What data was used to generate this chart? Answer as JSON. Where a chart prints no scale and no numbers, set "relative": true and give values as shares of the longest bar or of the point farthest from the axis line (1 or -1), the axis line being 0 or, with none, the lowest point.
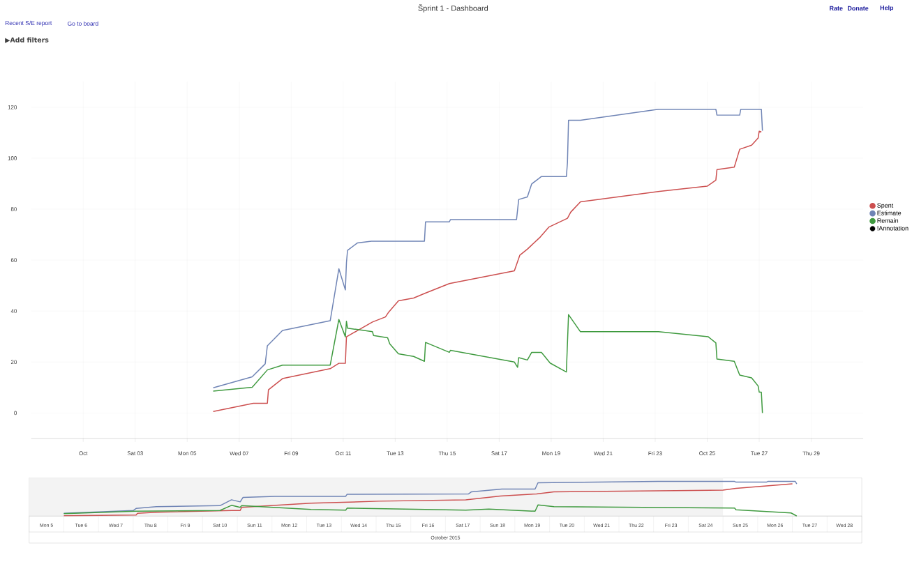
{
  "chart_data": [
    {
      "type": "line",
      "title": "Šprint 1 - Dashboard",
      "annotations": [
        "Recent S/E report",
        "Go to board",
        "▶Add filters",
        "Rate",
        "Donate",
        "Help"
      ],
      "xlim": [
        "2015-09-29",
        "2015-10-31"
      ],
      "ylim": [
        -10,
        130
      ],
      "xticks": [
        {
          "value": "2015-10-01",
          "label": "Oct"
        },
        {
          "value": "2015-10-03",
          "label": "Sat 03"
        },
        {
          "value": "2015-10-05",
          "label": "Mon 05"
        },
        {
          "value": "2015-10-07",
          "label": "Wed 07"
        },
        {
          "value": "2015-10-09",
          "label": "Fri 09"
        },
        {
          "value": "2015-10-11",
          "label": "Oct 11"
        },
        {
          "value": "2015-10-13",
          "label": "Tue 13"
        },
        {
          "value": "2015-10-15",
          "label": "Thu 15"
        },
        {
          "value": "2015-10-17",
          "label": "Sat 17"
        },
        {
          "value": "2015-10-19",
          "label": "Mon 19"
        },
        {
          "value": "2015-10-21",
          "label": "Wed 21"
        },
        {
          "value": "2015-10-23",
          "label": "Fri 23"
        },
        {
          "value": "2015-10-25",
          "label": "Oct 25"
        },
        {
          "value": "2015-10-27",
          "label": "Tue 27"
        },
        {
          "value": "2015-10-29",
          "label": "Thu 29"
        }
      ],
      "yticks": [
        0,
        20,
        40,
        60,
        80,
        100,
        120
      ],
      "grid": true,
      "legend": "right",
      "series": [
        {
          "name": "Spent",
          "color": "#cc4f4f",
          "x": [
            "2015-10-06T00:00",
            "2015-10-07T13:00",
            "2015-10-08T02:00",
            "2015-10-08T03:00",
            "2015-10-08T16:00",
            "2015-10-10T12:00",
            "2015-10-10T20:00",
            "2015-10-11T02:00",
            "2015-10-11T03:00",
            "2015-10-12T03:00",
            "2015-10-12T15:00",
            "2015-10-12T18:00",
            "2015-10-13T03:00",
            "2015-10-13T17:00",
            "2015-10-14T03:00",
            "2015-10-15T02:00",
            "2015-10-17T14:00",
            "2015-10-17T19:00",
            "2015-10-18T02:00",
            "2015-10-18T14:00",
            "2015-10-18T22:00",
            "2015-10-19T15:00",
            "2015-10-19T18:00",
            "2015-10-20T03:00",
            "2015-10-23T04:00",
            "2015-10-25T00:00",
            "2015-10-25T08:00",
            "2015-10-25T09:00",
            "2015-10-26T01:00",
            "2015-10-26T06:00",
            "2015-10-26T17:00",
            "2015-10-26T23:00",
            "2015-10-27T00:00",
            "2015-10-27T02:00"
          ],
          "values": [
            0.6,
            3.8,
            3.8,
            9.1,
            13.5,
            17.4,
            19.5,
            19.5,
            29.9,
            35.7,
            37.7,
            39.6,
            44.0,
            45.1,
            46.9,
            50.8,
            55.8,
            61.9,
            64.3,
            69.1,
            73.0,
            76.4,
            78.8,
            82.9,
            87.0,
            89.0,
            91.4,
            95.5,
            96.5,
            103.5,
            105.1,
            107.9,
            110.6,
            110.3
          ]
        },
        {
          "name": "Estimate",
          "color": "#6f84b5",
          "x": [
            "2015-10-06T00:00",
            "2015-10-07T12:00",
            "2015-10-08T00:00",
            "2015-10-08T02:00",
            "2015-10-08T16:00",
            "2015-10-10T12:00",
            "2015-10-10T20:00",
            "2015-10-11T02:00",
            "2015-10-11T03:00",
            "2015-10-11T04:00",
            "2015-10-11T13:00",
            "2015-10-12T02:00",
            "2015-10-14T03:00",
            "2015-10-14T04:00",
            "2015-10-15T02:00",
            "2015-10-15T03:00",
            "2015-10-17T16:00",
            "2015-10-17T18:00",
            "2015-10-18T02:00",
            "2015-10-18T06:00",
            "2015-10-18T15:00",
            "2015-10-19T14:00",
            "2015-10-19T15:00",
            "2015-10-19T16:00",
            "2015-10-20T03:00",
            "2015-10-23T03:00",
            "2015-10-25T08:00",
            "2015-10-25T09:00",
            "2015-10-26T06:00",
            "2015-10-26T07:00",
            "2015-10-27T02:00",
            "2015-10-27T03:00"
          ],
          "values": [
            9.9,
            14.2,
            19.3,
            26.4,
            32.4,
            36.2,
            56.6,
            48.3,
            59.0,
            63.8,
            66.7,
            67.4,
            67.4,
            75.0,
            75.0,
            75.9,
            75.9,
            83.8,
            84.8,
            89.9,
            92.8,
            92.8,
            98.2,
            114.9,
            114.9,
            119.2,
            119.2,
            116.9,
            116.9,
            119.2,
            119.2,
            110.8
          ]
        },
        {
          "name": "Remain",
          "color": "#3f9a3f",
          "x": [
            "2015-10-06T00:00",
            "2015-10-07T12:00",
            "2015-10-08T02:00",
            "2015-10-08T16:00",
            "2015-10-10T12:00",
            "2015-10-10T20:00",
            "2015-10-11T02:00",
            "2015-10-11T03:00",
            "2015-10-11T04:00",
            "2015-10-12T03:00",
            "2015-10-12T04:00",
            "2015-10-12T17:00",
            "2015-10-12T19:00",
            "2015-10-13T03:00",
            "2015-10-13T17:00",
            "2015-10-14T03:00",
            "2015-10-14T04:00",
            "2015-10-15T02:00",
            "2015-10-15T03:00",
            "2015-10-17T14:00",
            "2015-10-17T17:00",
            "2015-10-17T18:00",
            "2015-10-18T02:00",
            "2015-10-18T06:00",
            "2015-10-18T15:00",
            "2015-10-18T23:00",
            "2015-10-19T14:00",
            "2015-10-19T16:00",
            "2015-10-20T03:00",
            "2015-10-23T03:00",
            "2015-10-25T01:00",
            "2015-10-25T08:00",
            "2015-10-25T09:00",
            "2015-10-26T01:00",
            "2015-10-26T06:00",
            "2015-10-26T17:00",
            "2015-10-26T23:00",
            "2015-10-27T00:00",
            "2015-10-27T02:00",
            "2015-10-27T03:00"
          ],
          "values": [
            8.6,
            10.1,
            16.9,
            18.8,
            18.8,
            36.7,
            29.9,
            36.0,
            33.3,
            31.9,
            30.4,
            29.5,
            27.1,
            23.2,
            22.2,
            20.3,
            27.7,
            23.8,
            24.6,
            20.0,
            17.9,
            21.7,
            20.8,
            23.8,
            23.8,
            19.6,
            16.1,
            38.6,
            31.9,
            31.9,
            29.9,
            27.5,
            21.2,
            20.3,
            14.9,
            13.8,
            10.6,
            8.2,
            8.2,
            0
          ]
        },
        {
          "name": "!Annotation",
          "color": "#000000"
        }
      ]
    },
    {
      "type": "line",
      "relative": true,
      "tick_labels": "x",
      "xlabel": "October 2015",
      "xlim": [
        "2015-10-05",
        "2015-10-29"
      ],
      "xticks": [
        {
          "value": "2015-10-05T12:00",
          "label": "Mon 5"
        },
        {
          "value": "2015-10-06T12:00",
          "label": "Tue 6"
        },
        {
          "value": "2015-10-07T12:00",
          "label": "Wed 7"
        },
        {
          "value": "2015-10-08T12:00",
          "label": "Thu 8"
        },
        {
          "value": "2015-10-09T12:00",
          "label": "Fri 9"
        },
        {
          "value": "2015-10-10T12:00",
          "label": "Sat 10"
        },
        {
          "value": "2015-10-11T12:00",
          "label": "Sun 11"
        },
        {
          "value": "2015-10-12T12:00",
          "label": "Mon 12"
        },
        {
          "value": "2015-10-13T12:00",
          "label": "Tue 13"
        },
        {
          "value": "2015-10-14T12:00",
          "label": "Wed 14"
        },
        {
          "value": "2015-10-15T12:00",
          "label": "Thu 15"
        },
        {
          "value": "2015-10-16T12:00",
          "label": "Fri 16"
        },
        {
          "value": "2015-10-17T12:00",
          "label": "Sat 17"
        },
        {
          "value": "2015-10-18T12:00",
          "label": "Sun 18"
        },
        {
          "value": "2015-10-19T12:00",
          "label": "Mon 19"
        },
        {
          "value": "2015-10-20T12:00",
          "label": "Tue 20"
        },
        {
          "value": "2015-10-21T12:00",
          "label": "Wed 21"
        },
        {
          "value": "2015-10-22T12:00",
          "label": "Thu 22"
        },
        {
          "value": "2015-10-23T12:00",
          "label": "Fri 23"
        },
        {
          "value": "2015-10-24T12:00",
          "label": "Sat 24"
        },
        {
          "value": "2015-10-25T12:00",
          "label": "Sun 25"
        },
        {
          "value": "2015-10-26T12:00",
          "label": "Mon 26"
        },
        {
          "value": "2015-10-27T12:00",
          "label": "Tue 27"
        },
        {
          "value": "2015-10-28T12:00",
          "label": "Wed 28"
        }
      ],
      "bands": [
        {
          "axis": "x",
          "from": "2015-10-05",
          "to": "2015-10-25",
          "color": "#f3f3f3"
        }
      ],
      "series": [
        {
          "color": "#cc4f4f",
          "x": [
            "2015-10-06T00:00",
            "2015-10-08T02:00",
            "2015-10-08T03:00",
            "2015-10-08T16:00",
            "2015-10-10T20:00",
            "2015-10-11T02:00",
            "2015-10-11T03:00",
            "2015-10-13T03:00",
            "2015-10-15T02:00",
            "2015-10-17T14:00",
            "2015-10-18T14:00",
            "2015-10-19T15:00",
            "2015-10-20T03:00",
            "2015-10-25T00:00",
            "2015-10-25T09:00",
            "2015-10-26T06:00",
            "2015-10-27T00:00"
          ],
          "values": [
            0.01,
            0.03,
            0.08,
            0.11,
            0.16,
            0.16,
            0.25,
            0.37,
            0.43,
            0.47,
            0.58,
            0.64,
            0.7,
            0.75,
            0.8,
            0.87,
            0.93
          ]
        },
        {
          "color": "#6f84b5",
          "x": [
            "2015-10-06T00:00",
            "2015-10-08T00:00",
            "2015-10-08T02:00",
            "2015-10-08T16:00",
            "2015-10-10T12:00",
            "2015-10-10T20:00",
            "2015-10-11T02:00",
            "2015-10-11T04:00",
            "2015-10-12T02:00",
            "2015-10-14T03:00",
            "2015-10-14T04:00",
            "2015-10-17T16:00",
            "2015-10-17T18:00",
            "2015-10-18T15:00",
            "2015-10-19T14:00",
            "2015-10-19T16:00",
            "2015-10-23T03:00",
            "2015-10-25T08:00",
            "2015-10-25T09:00",
            "2015-10-26T06:00",
            "2015-10-26T07:00",
            "2015-10-27T02:00",
            "2015-10-27T03:00"
          ],
          "values": [
            0.08,
            0.16,
            0.22,
            0.27,
            0.3,
            0.47,
            0.41,
            0.54,
            0.57,
            0.57,
            0.63,
            0.64,
            0.7,
            0.78,
            0.78,
            0.96,
            1,
            1,
            0.98,
            0.98,
            1,
            1,
            0.93
          ]
        },
        {
          "color": "#3f9a3f",
          "x": [
            "2015-10-06T00:00",
            "2015-10-08T02:00",
            "2015-10-10T12:00",
            "2015-10-10T20:00",
            "2015-10-11T02:00",
            "2015-10-11T03:00",
            "2015-10-13T03:00",
            "2015-10-14T03:00",
            "2015-10-14T04:00",
            "2015-10-17T14:00",
            "2015-10-18T06:00",
            "2015-10-19T14:00",
            "2015-10-19T16:00",
            "2015-10-20T03:00",
            "2015-10-25T08:00",
            "2015-10-25T09:00",
            "2015-10-26T23:00",
            "2015-10-27T00:00",
            "2015-10-27T03:00"
          ],
          "values": [
            0.07,
            0.14,
            0.16,
            0.31,
            0.25,
            0.3,
            0.19,
            0.17,
            0.23,
            0.17,
            0.2,
            0.14,
            0.32,
            0.27,
            0.23,
            0.18,
            0.09,
            0.07,
            0
          ]
        }
      ]
    }
  ]
}
